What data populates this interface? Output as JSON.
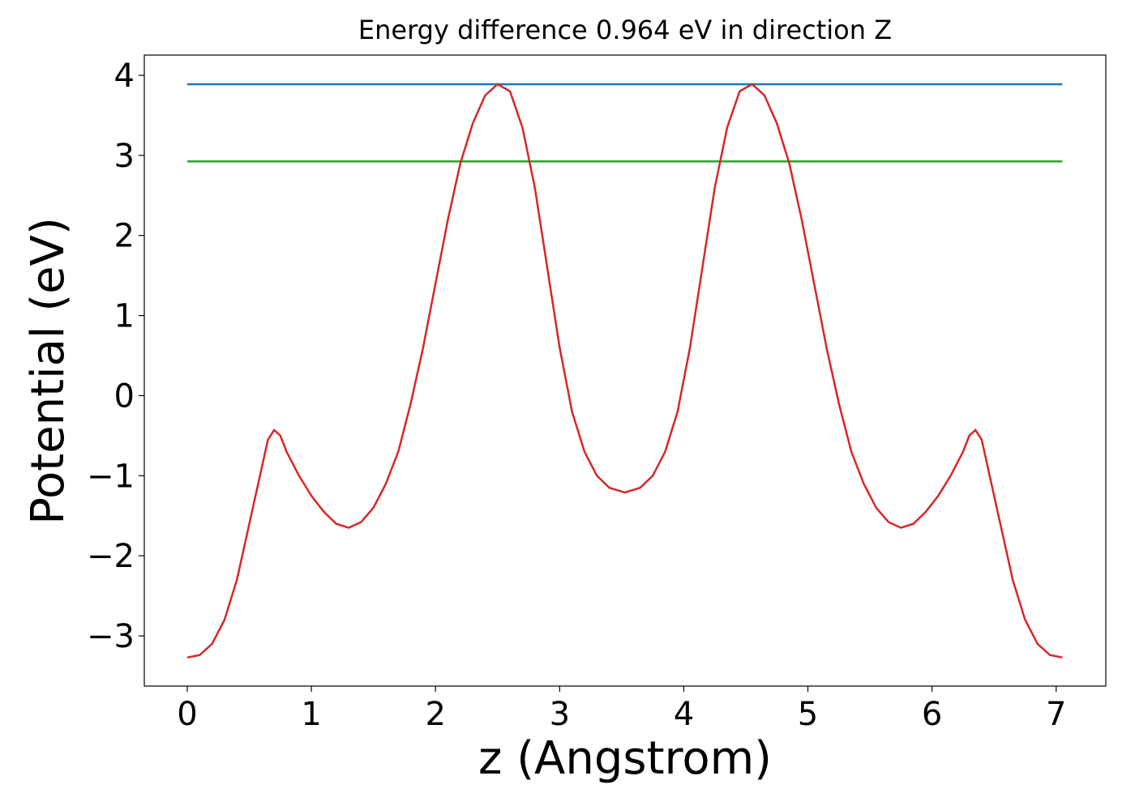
{
  "chart_data": {
    "type": "line",
    "title": "Energy difference 0.964 eV in direction Z",
    "x_label": "z (Angstrom)",
    "y_label": "Potential (eV)",
    "xlim": [
      -0.346,
      7.4
    ],
    "ylim": [
      -3.627,
      4.253
    ],
    "xticks": [
      0,
      1,
      2,
      3,
      4,
      5,
      6,
      7
    ],
    "yticks": [
      {
        "value": -3,
        "label": "−3"
      },
      {
        "value": -2,
        "label": "−2"
      },
      {
        "value": -1,
        "label": "−1"
      },
      0,
      1,
      2,
      3,
      4
    ],
    "series": [
      {
        "color": "#1f77b4",
        "x": [
          0,
          7.05
        ],
        "values": [
          3.889,
          3.889
        ]
      },
      {
        "color": "#2ca02c",
        "x": [
          0,
          7.05
        ],
        "values": [
          2.925,
          2.925
        ]
      },
      {
        "color": "#d62728",
        "x": [
          0,
          0.1,
          0.2,
          0.3,
          0.4,
          0.5,
          0.6,
          0.65,
          0.7,
          0.75,
          0.8,
          0.9,
          1.0,
          1.1,
          1.2,
          1.3,
          1.4,
          1.5,
          1.6,
          1.7,
          1.8,
          1.9,
          2.0,
          2.1,
          2.2,
          2.3,
          2.4,
          2.5,
          2.6,
          2.7,
          2.8,
          2.9,
          3.0,
          3.1,
          3.2,
          3.3,
          3.4,
          3.525,
          3.65,
          3.75,
          3.85,
          3.95,
          4.05,
          4.15,
          4.25,
          4.35,
          4.45,
          4.55,
          4.65,
          4.75,
          4.85,
          4.95,
          5.05,
          5.15,
          5.25,
          5.35,
          5.45,
          5.55,
          5.65,
          5.75,
          5.85,
          5.95,
          6.05,
          6.15,
          6.25,
          6.3,
          6.35,
          6.4,
          6.45,
          6.55,
          6.65,
          6.75,
          6.85,
          6.95,
          7.05
        ],
        "values": [
          -3.27,
          -3.24,
          -3.1,
          -2.8,
          -2.3,
          -1.6,
          -0.9,
          -0.55,
          -0.43,
          -0.5,
          -0.7,
          -1.0,
          -1.25,
          -1.45,
          -1.6,
          -1.65,
          -1.58,
          -1.4,
          -1.1,
          -0.7,
          -0.1,
          0.6,
          1.4,
          2.2,
          2.9,
          3.4,
          3.75,
          3.89,
          3.8,
          3.35,
          2.6,
          1.6,
          0.6,
          -0.2,
          -0.7,
          -1.0,
          -1.15,
          -1.21,
          -1.15,
          -1.0,
          -0.7,
          -0.2,
          0.6,
          1.6,
          2.6,
          3.35,
          3.8,
          3.89,
          3.75,
          3.4,
          2.9,
          2.2,
          1.4,
          0.6,
          -0.1,
          -0.7,
          -1.1,
          -1.4,
          -1.58,
          -1.65,
          -1.6,
          -1.45,
          -1.25,
          -1.0,
          -0.7,
          -0.5,
          -0.43,
          -0.55,
          -0.9,
          -1.6,
          -2.3,
          -2.8,
          -3.1,
          -3.24,
          -3.27
        ]
      }
    ]
  }
}
